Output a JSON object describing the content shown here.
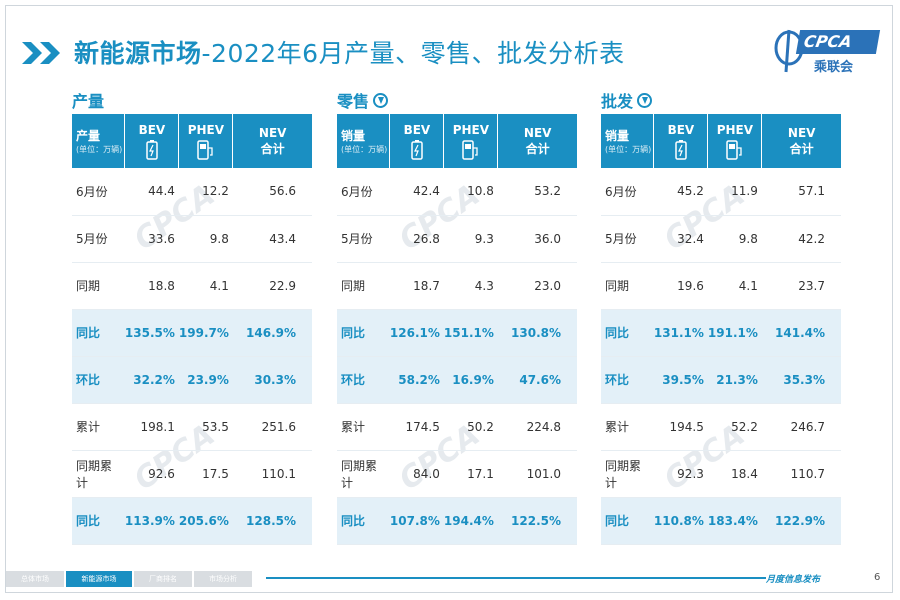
{
  "header": {
    "title_bold": "新能源市场",
    "title_rest": "-2022年6月产量、零售、批发分析表",
    "logo_text": "CPCA",
    "logo_sub": "乘联会"
  },
  "columns": {
    "bev": "BEV",
    "phev": "PHEV",
    "nev_line1": "NEV",
    "nev_line2": "合计",
    "unit": "(单位：万辆)"
  },
  "sections": [
    {
      "title": "产量",
      "row_header": "产量",
      "rows": [
        {
          "label": "6月份",
          "bev": "44.4",
          "phev": "12.2",
          "nev": "56.6"
        },
        {
          "label": "5月份",
          "bev": "33.6",
          "phev": "9.8",
          "nev": "43.4"
        },
        {
          "label": "同期",
          "bev": "18.8",
          "phev": "4.1",
          "nev": "22.9"
        },
        {
          "label": "同比",
          "bev": "135.5%",
          "phev": "199.7%",
          "nev": "146.9%"
        },
        {
          "label": "环比",
          "bev": "32.2%",
          "phev": "23.9%",
          "nev": "30.3%"
        },
        {
          "label": "累计",
          "bev": "198.1",
          "phev": "53.5",
          "nev": "251.6"
        },
        {
          "label": "同期累计",
          "bev": "92.6",
          "phev": "17.5",
          "nev": "110.1"
        },
        {
          "label": "同比",
          "bev": "113.9%",
          "phev": "205.6%",
          "nev": "128.5%"
        }
      ]
    },
    {
      "title": "零售",
      "row_header": "销量",
      "rows": [
        {
          "label": "6月份",
          "bev": "42.4",
          "phev": "10.8",
          "nev": "53.2"
        },
        {
          "label": "5月份",
          "bev": "26.8",
          "phev": "9.3",
          "nev": "36.0"
        },
        {
          "label": "同期",
          "bev": "18.7",
          "phev": "4.3",
          "nev": "23.0"
        },
        {
          "label": "同比",
          "bev": "126.1%",
          "phev": "151.1%",
          "nev": "130.8%"
        },
        {
          "label": "环比",
          "bev": "58.2%",
          "phev": "16.9%",
          "nev": "47.6%"
        },
        {
          "label": "累计",
          "bev": "174.5",
          "phev": "50.2",
          "nev": "224.8"
        },
        {
          "label": "同期累计",
          "bev": "84.0",
          "phev": "17.1",
          "nev": "101.0"
        },
        {
          "label": "同比",
          "bev": "107.8%",
          "phev": "194.4%",
          "nev": "122.5%"
        }
      ]
    },
    {
      "title": "批发",
      "row_header": "销量",
      "rows": [
        {
          "label": "6月份",
          "bev": "45.2",
          "phev": "11.9",
          "nev": "57.1"
        },
        {
          "label": "5月份",
          "bev": "32.4",
          "phev": "9.8",
          "nev": "42.2"
        },
        {
          "label": "同期",
          "bev": "19.6",
          "phev": "4.1",
          "nev": "23.7"
        },
        {
          "label": "同比",
          "bev": "131.1%",
          "phev": "191.1%",
          "nev": "141.4%"
        },
        {
          "label": "环比",
          "bev": "39.5%",
          "phev": "21.3%",
          "nev": "35.3%"
        },
        {
          "label": "累计",
          "bev": "194.5",
          "phev": "52.2",
          "nev": "246.7"
        },
        {
          "label": "同期累计",
          "bev": "92.3",
          "phev": "18.4",
          "nev": "110.7"
        },
        {
          "label": "同比",
          "bev": "110.8%",
          "phev": "183.4%",
          "nev": "122.9%"
        }
      ]
    }
  ],
  "footer": {
    "tabs": [
      "总体市场",
      "新能源市场",
      "厂商排名",
      "市场分析"
    ],
    "active_tab": 1,
    "caption": "月度信息发布",
    "page": "6"
  },
  "colors": {
    "accent": "#1a8fc2",
    "highlight_row": "#e3f0f8"
  }
}
